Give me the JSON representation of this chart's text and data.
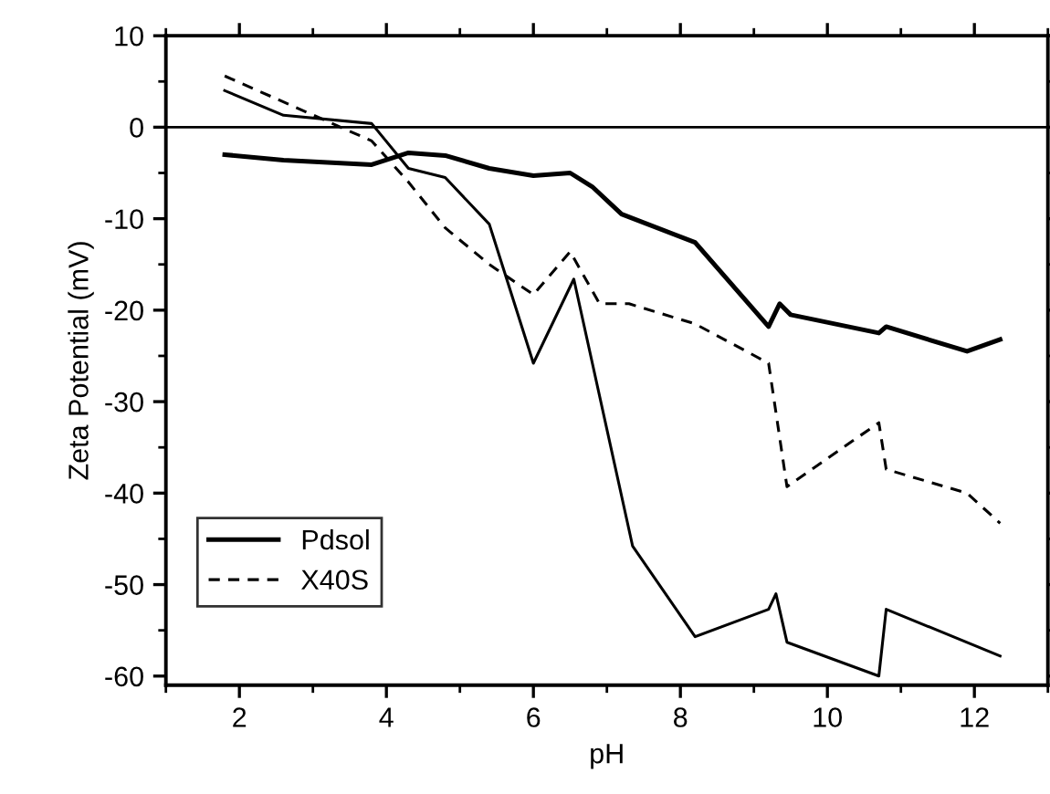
{
  "chart_data": {
    "type": "line",
    "xlabel": "pH",
    "ylabel": "Zeta Potential (mV)",
    "xlim": [
      1,
      13
    ],
    "ylim": [
      -61,
      10
    ],
    "xticks": [
      {
        "value": 1,
        "label": null
      },
      2,
      {
        "value": 3,
        "label": null
      },
      4,
      {
        "value": 5,
        "label": null
      },
      6,
      {
        "value": 7,
        "label": null
      },
      8,
      {
        "value": 9,
        "label": null
      },
      10,
      {
        "value": 11,
        "label": null
      },
      12,
      {
        "value": 13,
        "label": null
      }
    ],
    "yticks": [
      -60,
      {
        "value": -55,
        "label": null
      },
      -50,
      {
        "value": -45,
        "label": null
      },
      -40,
      {
        "value": -35,
        "label": null
      },
      -30,
      {
        "value": -25,
        "label": null
      },
      -20,
      {
        "value": -15,
        "label": null
      },
      -10,
      {
        "value": -5,
        "label": null
      },
      0,
      {
        "value": 5,
        "label": null
      },
      10
    ],
    "grid": false,
    "legend": "bottom left",
    "marker": "none",
    "ref_lines": [
      {
        "axis": "y",
        "value": 0,
        "color": "#000000"
      }
    ],
    "series": [
      {
        "name": "Pdsol",
        "color": "#000000",
        "line_style": "solid",
        "x": [
          1.8,
          2.6,
          3.8,
          4.3,
          4.8,
          5.4,
          6.0,
          6.5,
          6.8,
          7.2,
          8.2,
          9.2,
          9.35,
          9.5,
          10.7,
          10.8,
          11.9,
          12.35
        ],
        "values": [
          -3,
          -3.6,
          -4.1,
          -2.8,
          -3.1,
          -4.5,
          -5.3,
          -5.0,
          -6.5,
          -9.5,
          -12.6,
          -21.8,
          -19.3,
          -20.5,
          -22.5,
          -21.8,
          -24.5,
          -23.2
        ]
      },
      {
        "name": "X40S",
        "color": "#000000",
        "line_style": "dashed",
        "x": [
          1.8,
          3.8,
          4.3,
          4.8,
          5.4,
          6.0,
          6.5,
          6.9,
          7.3,
          8.2,
          9.2,
          9.45,
          10.7,
          10.8,
          11.9,
          12.35
        ],
        "values": [
          5.6,
          -1.5,
          -6,
          -11,
          -15,
          -18.3,
          -13.6,
          -19.3,
          -19.3,
          -21.5,
          -25.8,
          -39.3,
          -32.3,
          -37.4,
          -40,
          -43.3
        ]
      },
      {
        "color": "#000000",
        "line_style": "solid",
        "x": [
          1.8,
          2.6,
          3.8,
          4.3,
          4.8,
          5.4,
          6.0,
          6.55,
          7.35,
          8.2,
          9.2,
          9.3,
          9.45,
          10.7,
          10.8,
          12.35
        ],
        "values": [
          4,
          1.3,
          0.4,
          -4.5,
          -5.5,
          -10.6,
          -25.8,
          -16.6,
          -45.8,
          -55.7,
          -52.7,
          -51,
          -56.3,
          -60.0,
          -52.7,
          -57.8
        ]
      }
    ]
  }
}
